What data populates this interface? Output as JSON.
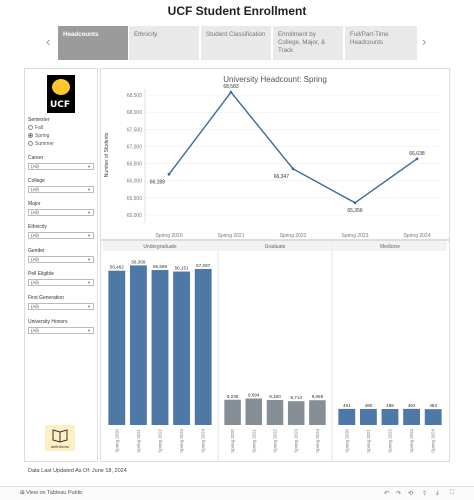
{
  "page": {
    "title": "UCF Student Enrollment"
  },
  "tabs": [
    {
      "label": "Headcounts",
      "active": true
    },
    {
      "label": "Ethnicity"
    },
    {
      "label": "Student Classification"
    },
    {
      "label": "Enrollment by College, Major, & Track"
    },
    {
      "label": "Full/Part-Time Headcounts"
    }
  ],
  "sidebar": {
    "logo_text": "UCF",
    "semester_label": "Semester",
    "semester_options": [
      "Fall",
      "Spring",
      "Summer"
    ],
    "semester_selected": "Spring",
    "filters": [
      {
        "label": "Career",
        "value": "(All)"
      },
      {
        "label": "College",
        "value": "(All)"
      },
      {
        "label": "Major",
        "value": "(All)"
      },
      {
        "label": "Ethnicity",
        "value": "(All)"
      },
      {
        "label": "Gender",
        "value": "(All)"
      },
      {
        "label": "Pell Eligible",
        "value": "(All)"
      },
      {
        "label": "First Generation",
        "value": "(All)"
      },
      {
        "label": "University Honors",
        "value": "(All)"
      }
    ],
    "definitions_label": "definitions"
  },
  "chart_data": [
    {
      "type": "line",
      "title": "University Headcount: Spring",
      "xlabel": "",
      "ylabel": "Number of Students",
      "x": [
        "Spring 2020",
        "Spring 2021",
        "Spring 2022",
        "Spring 2023",
        "Spring 2024"
      ],
      "values": [
        66188,
        68583,
        66347,
        65356,
        66638
      ],
      "value_labels": [
        "66,188",
        "68,583",
        "66,347",
        "65,356",
        "66,638"
      ],
      "ylim": [
        65000,
        68500
      ],
      "yticks": [
        65000,
        65500,
        66000,
        66500,
        67000,
        67500,
        68000,
        68500
      ],
      "ytick_labels": [
        "65,000",
        "65,500",
        "66,000",
        "66,500",
        "67,000",
        "67,500",
        "68,000",
        "68,500"
      ],
      "color": "#3e6a9a",
      "grid": true
    },
    {
      "type": "bar",
      "title": "",
      "categories": [
        "Spring 2020",
        "Spring 2021",
        "Spring 2022",
        "Spring 2023",
        "Spring 2024"
      ],
      "series": [
        {
          "name": "Undergraduate",
          "values": [
            56462,
            58399,
            56699,
            56151,
            57087
          ],
          "labels": [
            "56,462",
            "58,399",
            "56,699",
            "56,151",
            "57,087"
          ],
          "color": "#4e79a7"
        },
        {
          "name": "Graduate",
          "values": [
            9235,
            9694,
            9160,
            8713,
            9068
          ],
          "labels": [
            "9,235",
            "9,694",
            "9,160",
            "8,713",
            "9,068"
          ],
          "color": "#868f96"
        },
        {
          "name": "Medicine",
          "values": [
            491,
            490,
            488,
            492,
            483
          ],
          "labels": [
            "491",
            "490",
            "488",
            "492",
            "483"
          ],
          "color": "#4e79a7"
        }
      ]
    }
  ],
  "footer": {
    "note": "Data Last Updated As Of:  June 18, 2024",
    "view_on": "View on Tableau Public"
  }
}
